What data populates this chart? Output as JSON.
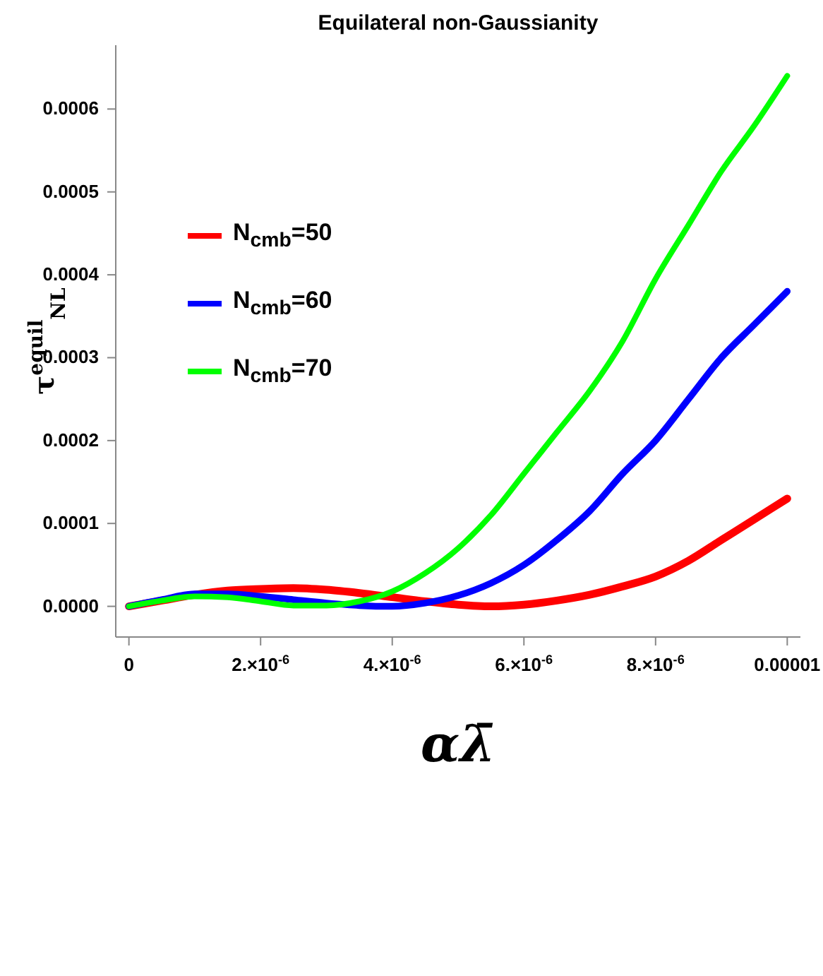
{
  "chart_data": {
    "type": "line",
    "title": "Equilateral non-Gaussianity",
    "xlabel": "αλ̄",
    "ylabel": "τ$^{equil}$$_{NL}$",
    "x": [
      0,
      5e-07,
      1e-06,
      1.5e-06,
      2e-06,
      2.5e-06,
      3e-06,
      3.5e-06,
      4e-06,
      4.5e-06,
      5e-06,
      5.5e-06,
      6e-06,
      6.5e-06,
      7e-06,
      7.5e-06,
      8e-06,
      8.5e-06,
      9e-06,
      9.5e-06,
      1e-05
    ],
    "series": [
      {
        "name": "N$_{cmb}$=50",
        "color": "#ff0000",
        "values": [
          0,
          7e-06,
          1.4e-05,
          1.9e-05,
          2.1e-05,
          2.2e-05,
          2e-05,
          1.6e-05,
          1.1e-05,
          6e-06,
          2e-06,
          0,
          2e-06,
          7e-06,
          1.4e-05,
          2.4e-05,
          3.6e-05,
          5.5e-05,
          8e-05,
          0.000105,
          0.00013
        ]
      },
      {
        "name": "N$_{cmb}$=60",
        "color": "#0000ff",
        "values": [
          0,
          8e-06,
          1.5e-05,
          1.5e-05,
          1.2e-05,
          8e-06,
          4e-06,
          1e-06,
          0,
          4e-06,
          1.3e-05,
          2.8e-05,
          5e-05,
          8e-05,
          0.000115,
          0.00016,
          0.0002,
          0.00025,
          0.0003,
          0.00034,
          0.00038
        ]
      },
      {
        "name": "N$_{cmb}$=70",
        "color": "#00ff00",
        "values": [
          0,
          7e-06,
          1.2e-05,
          1.1e-05,
          6e-06,
          1e-06,
          1e-06,
          6e-06,
          1.8e-05,
          4e-05,
          7e-05,
          0.00011,
          0.00016,
          0.00021,
          0.00026,
          0.00032,
          0.000395,
          0.00046,
          0.000525,
          0.00058,
          0.00064
        ]
      }
    ],
    "xlim": [
      -2e-07,
      1.02e-05
    ],
    "xticks": [
      0,
      {
        "value": 2e-06,
        "label": "2.×10$^{-6}$"
      },
      {
        "value": 4e-06,
        "label": "4.×10$^{-6}$"
      },
      {
        "value": 6e-06,
        "label": "6.×10$^{-6}$"
      },
      {
        "value": 8e-06,
        "label": "8.×10$^{-6}$"
      },
      {
        "value": 1e-05,
        "label": "0.00001"
      }
    ],
    "ylim": [
      -3.7e-05,
      0.000677
    ],
    "yticks": [
      {
        "value": 0,
        "label": "0.0000"
      },
      0.0001,
      0.0002,
      0.0003,
      0.0004,
      0.0005,
      0.0006
    ],
    "grid": false,
    "legend": "top left",
    "line_style": "solid",
    "marker": "none"
  }
}
